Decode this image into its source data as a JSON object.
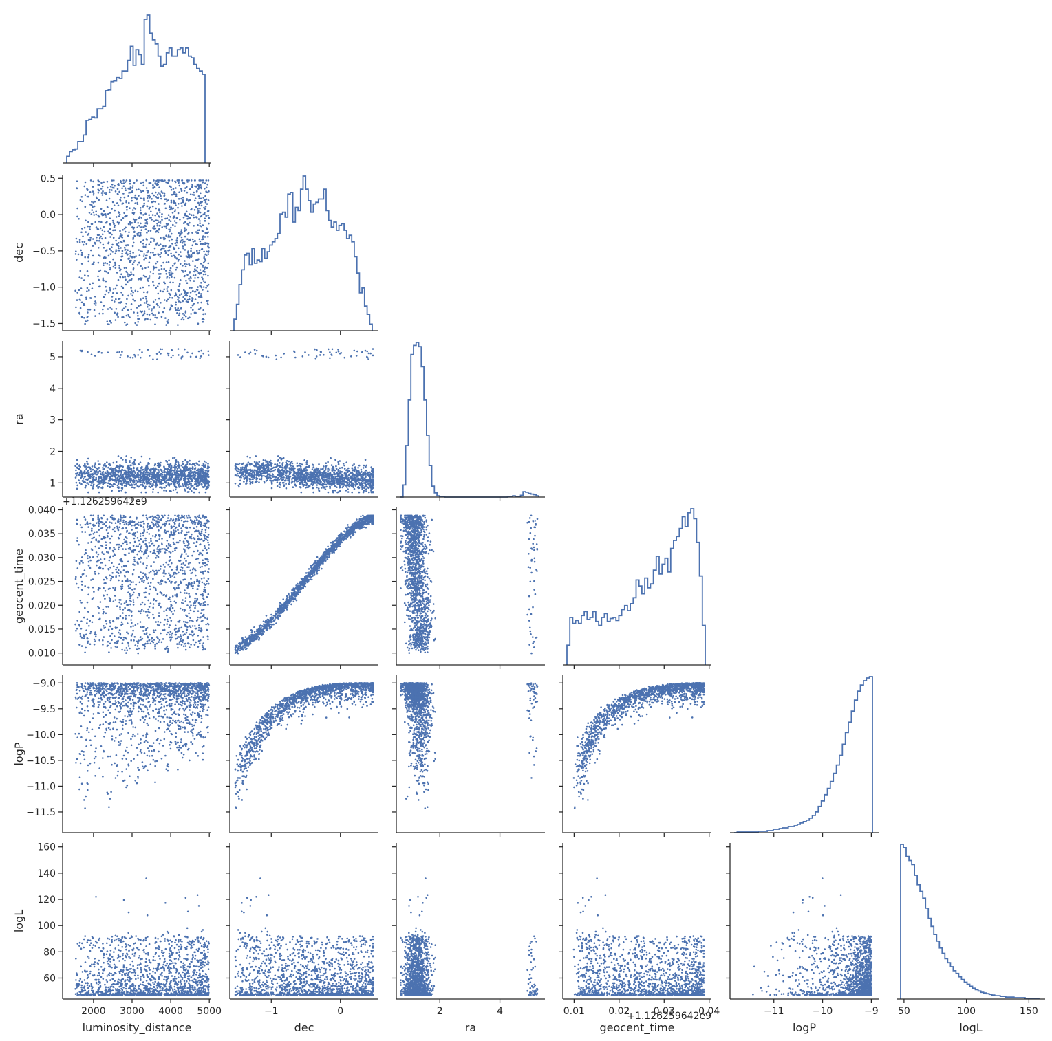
{
  "chart_data": {
    "type": "scatter",
    "kind": "corner-pairplot",
    "point_color": "#4c72b0",
    "hist_color": "#4c72b0",
    "variables": [
      {
        "key": "luminosity_distance",
        "label": "luminosity_distance",
        "ticks": [
          2000,
          3000,
          4000,
          5000
        ],
        "tick_labels": [
          "2000",
          "3000",
          "4000",
          "5000"
        ],
        "range": [
          1200,
          5050
        ]
      },
      {
        "key": "dec",
        "label": "dec",
        "ticks": [
          -1.5,
          -1.0,
          -0.5,
          0.0,
          0.5
        ],
        "tick_labels": [
          "−1.5",
          "−1.0",
          "−0.5",
          "0.0",
          "0.5"
        ],
        "range": [
          -1.6,
          0.55
        ],
        "x_ticks": [
          -1,
          0
        ],
        "x_tick_labels": [
          "−1",
          "0"
        ]
      },
      {
        "key": "ra",
        "label": "ra",
        "ticks": [
          1,
          2,
          3,
          4,
          5
        ],
        "tick_labels": [
          "1",
          "2",
          "3",
          "4",
          "5"
        ],
        "range": [
          0.55,
          5.5
        ],
        "x_ticks": [
          2,
          4
        ],
        "x_tick_labels": [
          "2",
          "4"
        ]
      },
      {
        "key": "geocent_time",
        "label": "geocent_time",
        "ticks": [
          0.01,
          0.015,
          0.02,
          0.025,
          0.03,
          0.035,
          0.04
        ],
        "tick_labels": [
          "0.010",
          "0.015",
          "0.020",
          "0.025",
          "0.030",
          "0.035",
          "0.040"
        ],
        "range": [
          0.0075,
          0.0405
        ],
        "x_ticks": [
          0.01,
          0.02,
          0.03,
          0.04
        ],
        "x_tick_labels": [
          "0.01",
          "0.02",
          "0.03",
          "0.04"
        ],
        "offset": "+1.126259642e9"
      },
      {
        "key": "logP",
        "label": "logP",
        "ticks": [
          -11.5,
          -11.0,
          -10.5,
          -10.0,
          -9.5,
          -9.0
        ],
        "tick_labels": [
          "−11.5",
          "−11.0",
          "−10.5",
          "−10.0",
          "−9.5",
          "−9.0"
        ],
        "range": [
          -11.9,
          -8.85
        ],
        "x_ticks": [
          -11,
          -10,
          -9
        ],
        "x_tick_labels": [
          "−11",
          "−10",
          "−9"
        ]
      },
      {
        "key": "logL",
        "label": "logL",
        "ticks": [
          60,
          80,
          100,
          120,
          140,
          160
        ],
        "tick_labels": [
          "60",
          "80",
          "100",
          "120",
          "140",
          "160"
        ],
        "range": [
          44,
          163
        ],
        "x_ticks": [
          50,
          100,
          150
        ],
        "x_tick_labels": [
          "50",
          "100",
          "150"
        ]
      }
    ],
    "histograms": {
      "luminosity_distance": [
        8,
        14,
        16,
        17,
        26,
        26,
        34,
        52,
        53,
        56,
        55,
        66,
        66,
        69,
        88,
        89,
        99,
        100,
        104,
        103,
        112,
        112,
        125,
        142,
        119,
        138,
        132,
        120,
        175,
        180,
        158,
        150,
        145,
        130,
        118,
        120,
        134,
        140,
        130,
        130,
        138,
        140,
        134,
        140,
        130,
        128,
        120,
        115,
        112,
        108
      ],
      "dec": [
        14,
        32,
        56,
        74,
        92,
        94,
        80,
        100,
        82,
        86,
        84,
        100,
        88,
        96,
        104,
        108,
        112,
        118,
        142,
        144,
        138,
        166,
        168,
        132,
        150,
        146,
        172,
        188,
        172,
        158,
        144,
        154,
        156,
        160,
        160,
        172,
        146,
        134,
        126,
        132,
        122,
        128,
        130,
        122,
        112,
        116,
        108,
        90,
        70,
        46,
        52,
        30,
        20,
        8
      ],
      "ra": [
        0,
        20,
        85,
        160,
        235,
        250,
        255,
        248,
        215,
        160,
        102,
        52,
        18,
        7,
        2,
        1,
        1,
        0,
        0,
        0,
        0,
        0,
        0,
        0,
        0,
        0,
        0,
        0,
        0,
        0,
        0,
        0,
        0,
        0,
        0,
        0,
        0,
        0,
        0,
        0,
        0,
        1,
        1,
        2,
        1,
        1,
        3,
        9,
        8,
        6,
        5,
        4,
        2
      ],
      "geocent_time": [
        20,
        48,
        42,
        45,
        42,
        50,
        54,
        46,
        48,
        54,
        44,
        40,
        48,
        52,
        44,
        47,
        48,
        45,
        50,
        56,
        60,
        55,
        62,
        68,
        86,
        80,
        72,
        88,
        78,
        82,
        96,
        110,
        92,
        102,
        108,
        94,
        118,
        126,
        130,
        138,
        150,
        140,
        154,
        158,
        148,
        124,
        90,
        40
      ],
      "logP": [
        0,
        1,
        1,
        1,
        1,
        1,
        1,
        1,
        2,
        2,
        2,
        3,
        3,
        5,
        5,
        6,
        7,
        7,
        9,
        9,
        10,
        12,
        14,
        16,
        18,
        21,
        25,
        30,
        38,
        46,
        55,
        64,
        74,
        86,
        98,
        112,
        128,
        145,
        160,
        176,
        192,
        205,
        214,
        220,
        224,
        226
      ],
      "logL": [
        230,
        225,
        212,
        206,
        200,
        184,
        170,
        160,
        150,
        135,
        120,
        108,
        96,
        86,
        76,
        68,
        60,
        54,
        48,
        42,
        38,
        33,
        29,
        25,
        22,
        19,
        16,
        14,
        12,
        10,
        9,
        8,
        7,
        6,
        5,
        5,
        4,
        4,
        3,
        3,
        3,
        2,
        2,
        2,
        2,
        1,
        1,
        1,
        1,
        1
      ]
    }
  }
}
